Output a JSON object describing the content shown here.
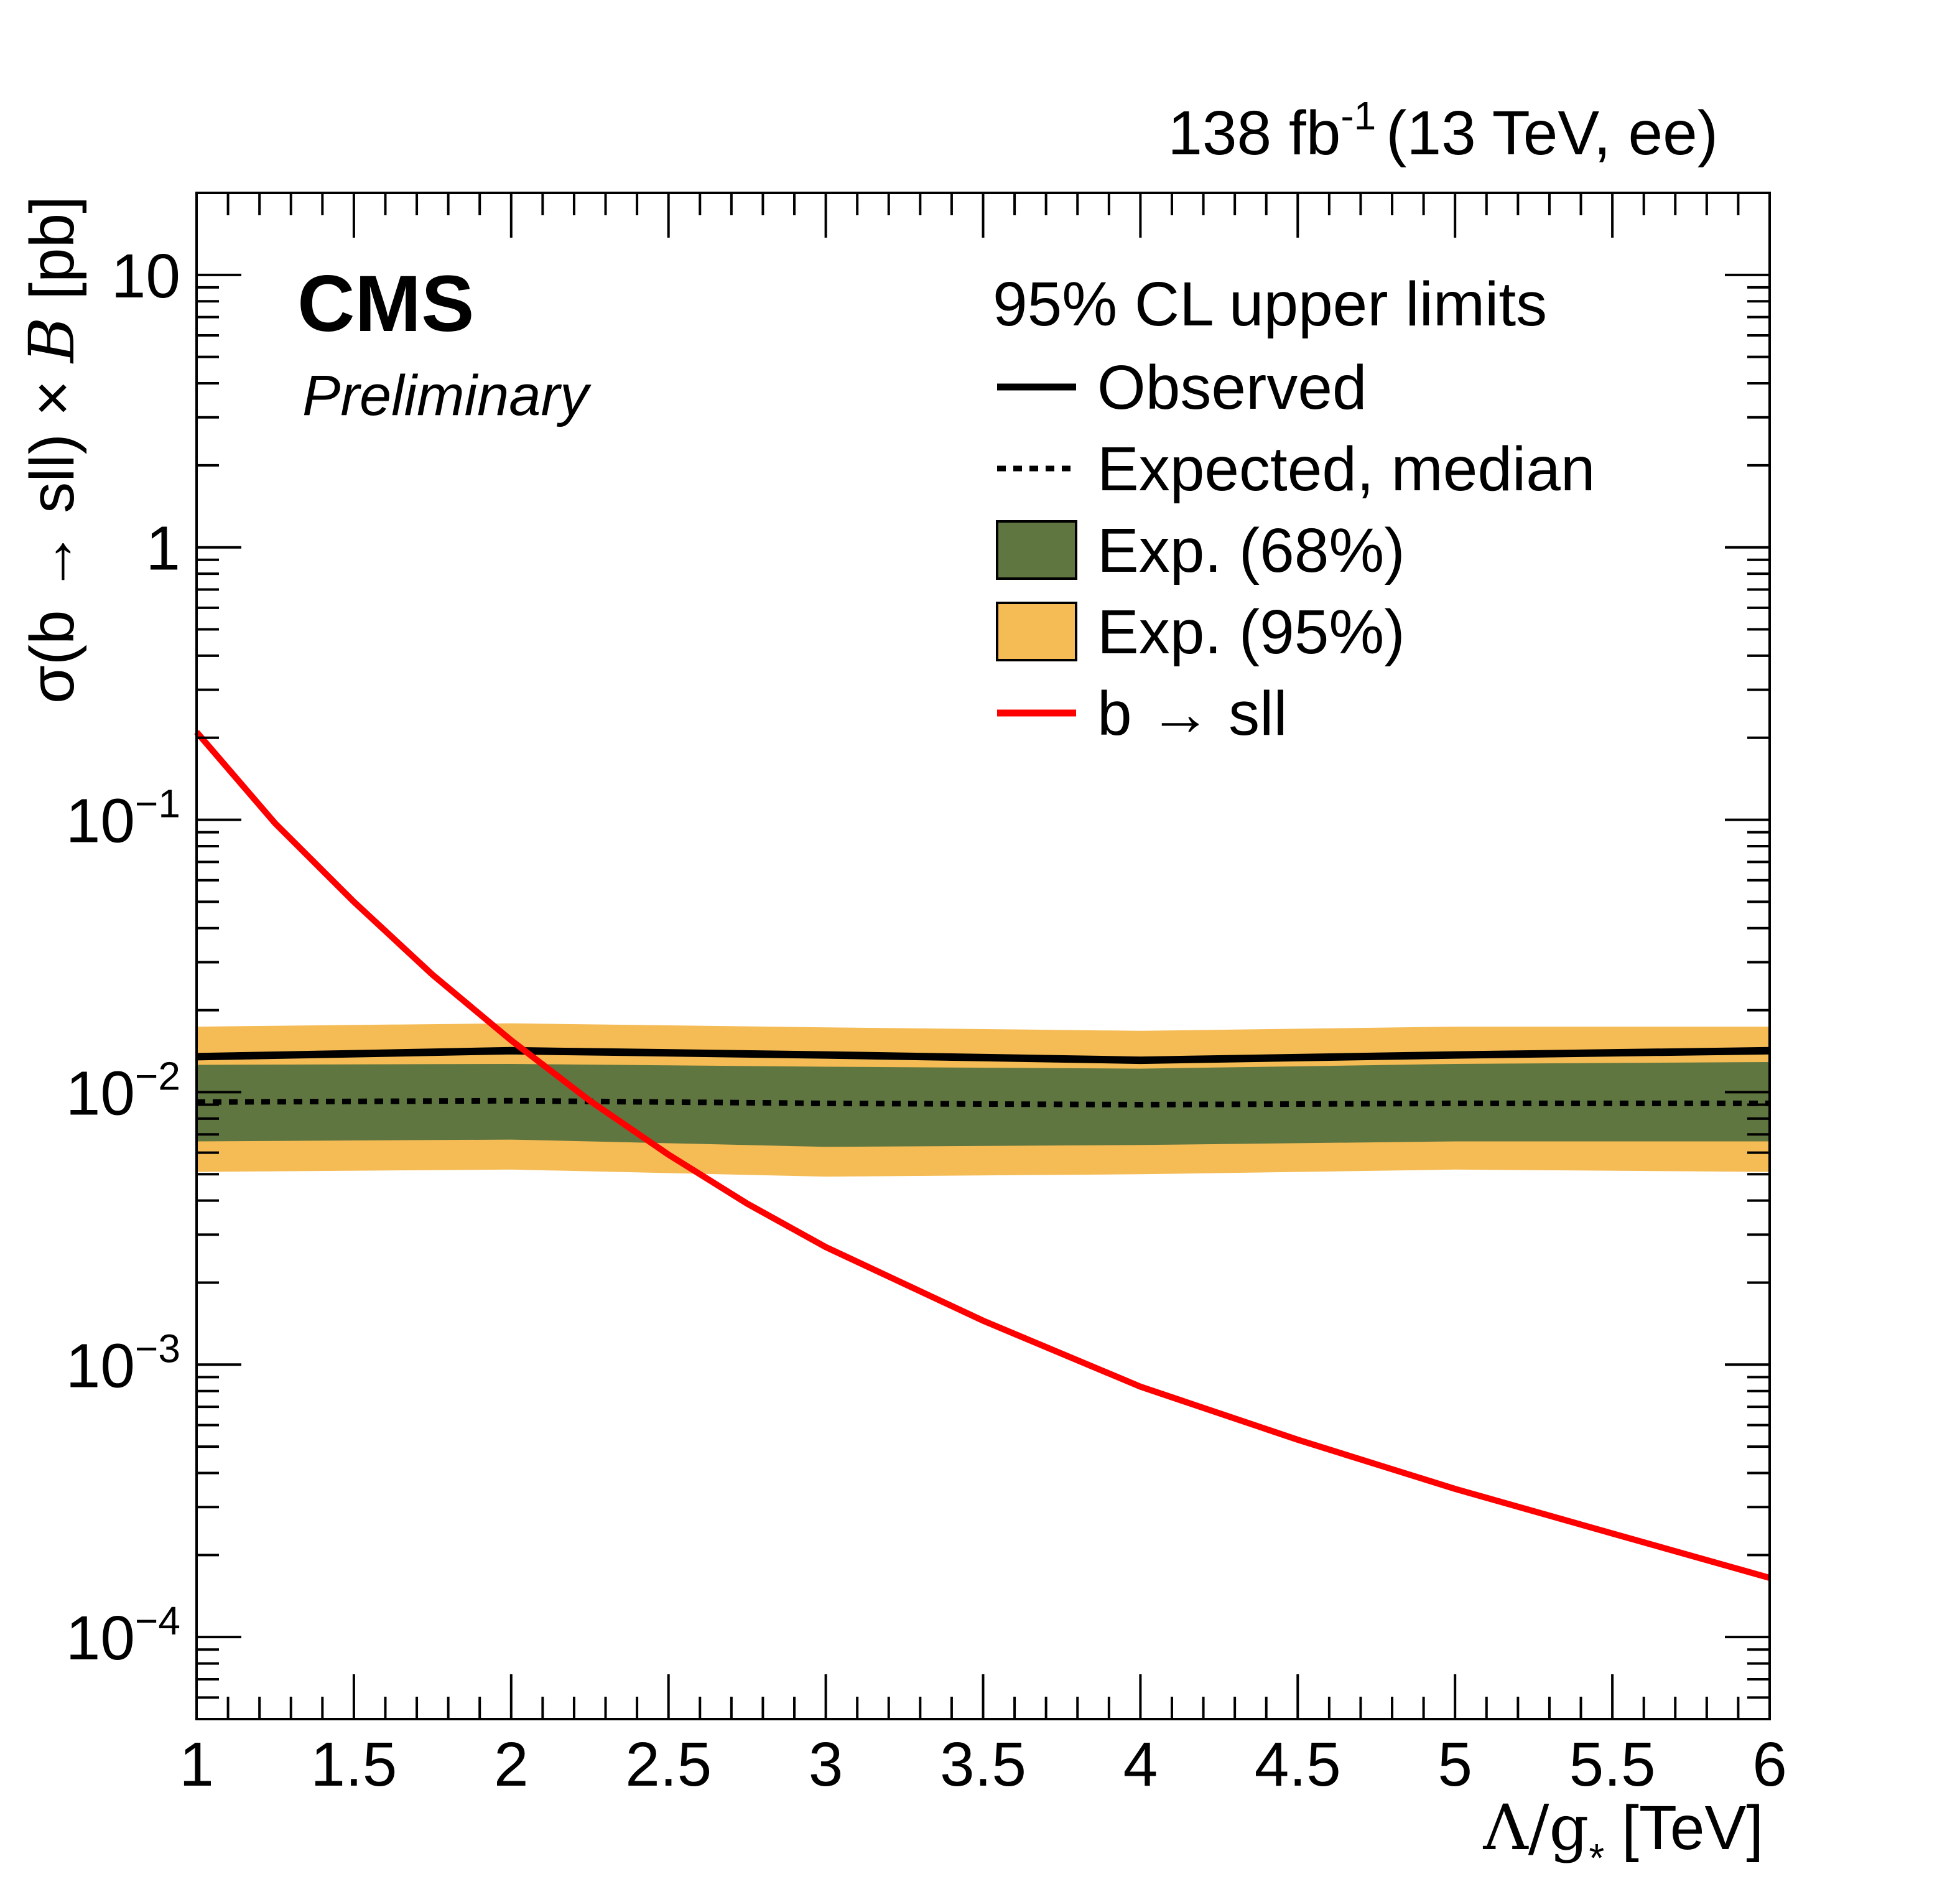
{
  "lumi": {
    "value": "138 fb",
    "exp": "-1",
    "energy": "(13 TeV, ee)"
  },
  "cms": {
    "label": "CMS",
    "sub": "Preliminary"
  },
  "legend": {
    "header": "95% CL upper limits",
    "items": [
      {
        "label": "Observed",
        "kind": "line",
        "color": "#000000",
        "dash": false
      },
      {
        "label": "Expected, median",
        "kind": "line",
        "color": "#000000",
        "dash": true
      },
      {
        "label": "Exp. (68%)",
        "kind": "box",
        "color": "#607641"
      },
      {
        "label": "Exp. (95%)",
        "kind": "box",
        "color": "#F5BB54"
      },
      {
        "label": "b → sll",
        "kind": "line",
        "color": "#FF0000",
        "dash": false
      }
    ]
  },
  "axes": {
    "x": {
      "pre": "Λ/g",
      "sub": "*",
      "post": " [TeV]"
    },
    "y": {
      "pre": "σ(b → sll) × ",
      "italic": "B",
      "post": " [pb]"
    }
  },
  "chart_data": {
    "type": "line",
    "xlim": [
      1,
      6
    ],
    "ylim": [
      5e-05,
      20
    ],
    "yscale": "log",
    "x_ticks": [
      "1",
      "1.5",
      "2",
      "2.5",
      "3",
      "3.5",
      "4",
      "4.5",
      "5",
      "5.5",
      "6"
    ],
    "y_ticks": [
      {
        "value": 10,
        "base": "10",
        "exp": ""
      },
      {
        "value": 1,
        "base": "1",
        "exp": ""
      },
      {
        "value": 0.1,
        "base": "10",
        "exp": "−1"
      },
      {
        "value": 0.01,
        "base": "10",
        "exp": "−2"
      },
      {
        "value": 0.001,
        "base": "10",
        "exp": "−3"
      },
      {
        "value": 0.0001,
        "base": "10",
        "exp": "−4"
      }
    ],
    "x": [
      1,
      2,
      3,
      4,
      5,
      6
    ],
    "observed": [
      0.0135,
      0.0142,
      0.0137,
      0.0131,
      0.0137,
      0.0142
    ],
    "expected": [
      0.0092,
      0.0093,
      0.0091,
      0.009,
      0.0091,
      0.0091
    ],
    "band68": {
      "low": [
        0.0066,
        0.0067,
        0.0063,
        0.0064,
        0.0066,
        0.0066
      ],
      "high": [
        0.0126,
        0.0127,
        0.0124,
        0.0122,
        0.0127,
        0.0129
      ]
    },
    "band95": {
      "low": [
        0.0051,
        0.0052,
        0.0049,
        0.005,
        0.0052,
        0.0051
      ],
      "high": [
        0.0174,
        0.0179,
        0.0173,
        0.0168,
        0.0174,
        0.0174
      ]
    },
    "signal": {
      "name": "b → sll",
      "x": [
        1,
        1.25,
        1.5,
        1.75,
        2,
        2.25,
        2.5,
        2.75,
        3,
        3.5,
        4,
        4.5,
        5,
        5.5,
        6
      ],
      "y": [
        0.21,
        0.097,
        0.05,
        0.027,
        0.0155,
        0.0093,
        0.0059,
        0.0039,
        0.0027,
        0.00145,
        0.00083,
        0.00053,
        0.00035,
        0.00024,
        0.000165
      ]
    },
    "colors": {
      "observed": "#000000",
      "expected": "#000000",
      "band68": "#607641",
      "band95": "#F5BB54",
      "signal": "#FF0000"
    }
  }
}
